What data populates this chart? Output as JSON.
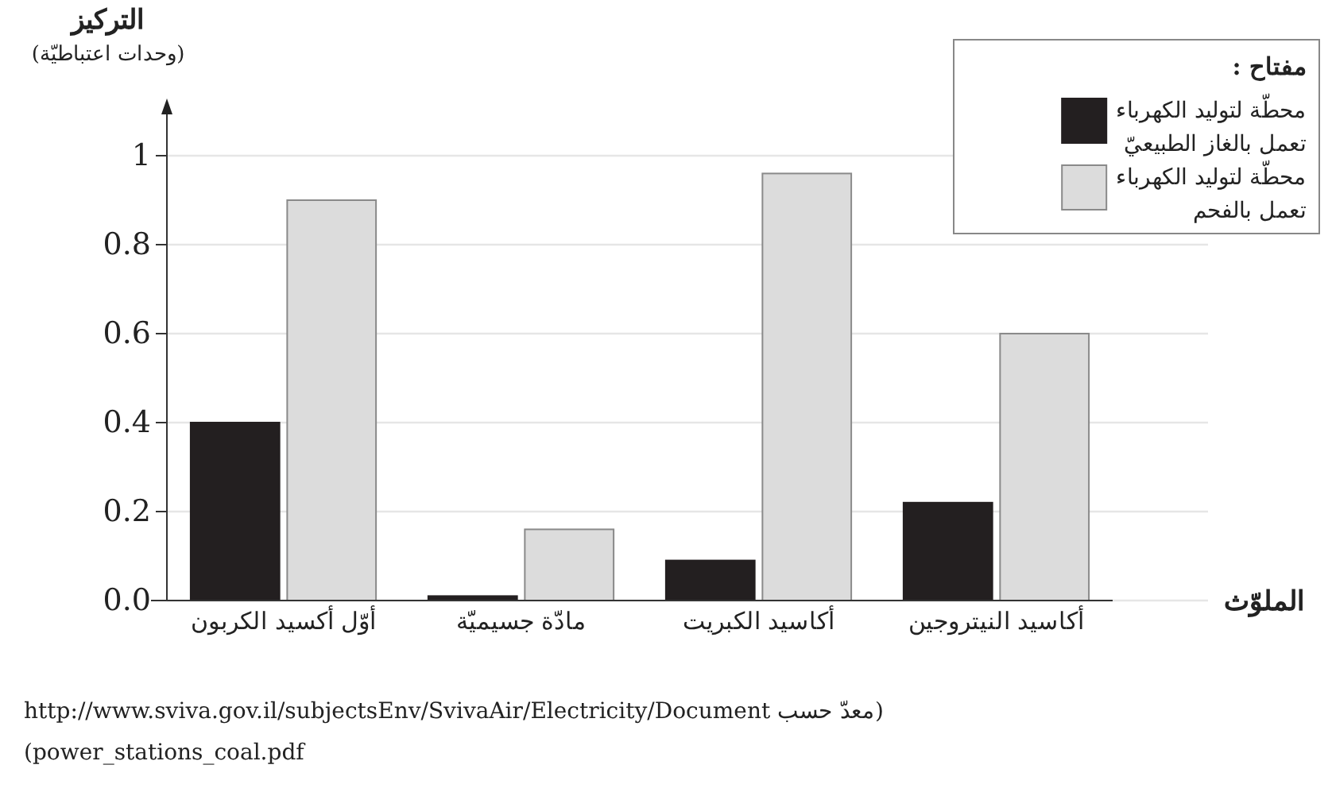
{
  "chart_data": {
    "type": "bar",
    "ylabel": "التركيز\n(وحدات اعتباطيّة)",
    "xlabel": "الملوّث",
    "legend_title": "مفتاح :",
    "categories": [
      "أوّل أكسيد الكربون",
      "مادّة جسيميّة",
      "أكاسيد الكبريت",
      "أكاسيد النيتروجين"
    ],
    "series": [
      {
        "name": "محطّة لتوليد الكهرباء تعمل بالغاز الطبيعيّ",
        "color": "#231f20",
        "values": [
          0.4,
          0.01,
          0.09,
          0.22
        ]
      },
      {
        "name": "محطّة لتوليد الكهرباء تعمل بالفحم",
        "color": "#dcdcdc",
        "values": [
          0.9,
          0.16,
          0.96,
          0.6
        ]
      }
    ],
    "ylim": [
      0,
      1.1
    ],
    "yticks": [
      {
        "value": 0,
        "label": "0.0"
      },
      0.2,
      0.4,
      0.6,
      0.8,
      1
    ],
    "grid": "y",
    "legend": "top right",
    "annotations": [
      "(معدّ حسب http://www.sviva.gov.il/subjectsEnv/SvivaAir/Electricity/Document",
      "power_stations_coal.pdf)"
    ]
  }
}
